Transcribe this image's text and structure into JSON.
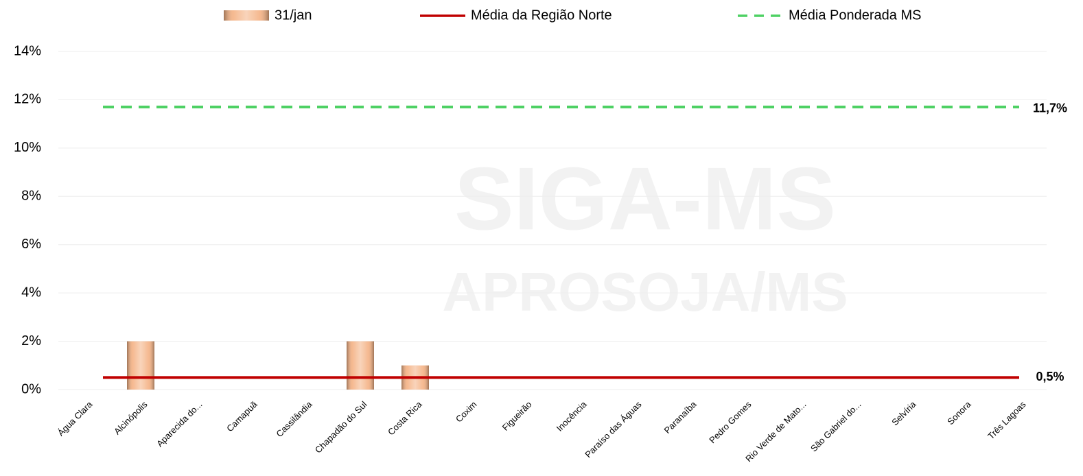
{
  "chart_data": {
    "type": "bar",
    "watermark": [
      "SIGA-MS",
      "APROSOJA/MS"
    ],
    "categories": [
      "Água Clara",
      "Alcinópolis",
      "Aparecida do...",
      "Camapuã",
      "Cassilândia",
      "Chapadão do Sul",
      "Costa Rica",
      "Coxim",
      "Figueirão",
      "Inocência",
      "Paraíso das Águas",
      "Paranaíba",
      "Pedro Gomes",
      "Rio Verde de Mato...",
      "São Gabriel do...",
      "Selvíria",
      "Sonora",
      "Três Lagoas"
    ],
    "series": [
      {
        "name": "31/jan",
        "color": "#f4b183",
        "values": [
          0,
          2,
          0,
          0,
          0,
          2,
          1,
          0,
          0,
          0,
          0,
          0,
          0,
          0,
          0,
          0,
          0,
          0
        ]
      }
    ],
    "reference_lines": [
      {
        "name": "Média da Região Norte",
        "color": "#c00000",
        "dashed": false,
        "value": 0.5,
        "value_label": "0,5%"
      },
      {
        "name": "Média Ponderada MS",
        "color": "#4ed164",
        "dashed": true,
        "value": 11.7,
        "value_label": "11,7%"
      }
    ],
    "ylim": [
      0,
      14
    ],
    "yticks": [
      {
        "value": 0,
        "label": "0%"
      },
      {
        "value": 2,
        "label": "2%"
      },
      {
        "value": 4,
        "label": "4%"
      },
      {
        "value": 6,
        "label": "6%"
      },
      {
        "value": 8,
        "label": "8%"
      },
      {
        "value": 10,
        "label": "10%"
      },
      {
        "value": 12,
        "label": "12%"
      },
      {
        "value": 14,
        "label": "14%"
      }
    ],
    "grid": true
  }
}
